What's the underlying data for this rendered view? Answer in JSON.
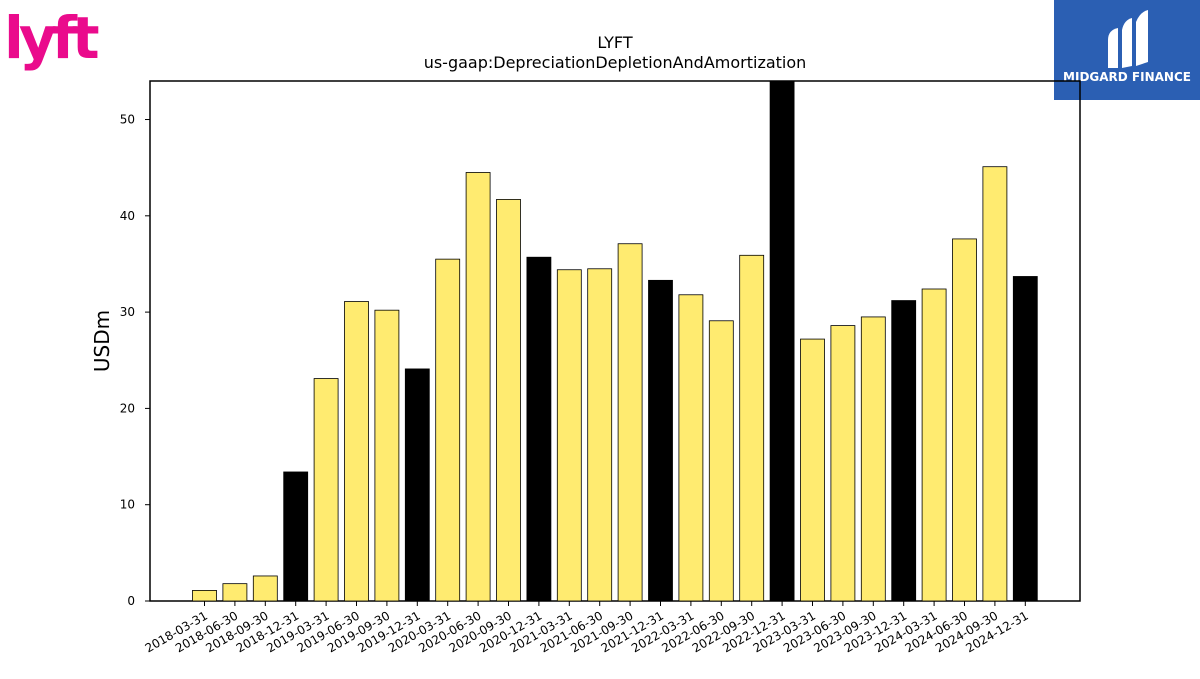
{
  "brand": {
    "left_logo": "lyft",
    "left_logo_color": "#ea0b8c",
    "right_logo_text": "MIDGARD FINANCE",
    "right_logo_bg": "#2b5fb3"
  },
  "chart_data": {
    "type": "bar",
    "title": "LYFT",
    "subtitle": "us-gaap:DepreciationDepletionAndAmortization",
    "xlabel": "",
    "ylabel": "USDm",
    "ylim": [
      0,
      54
    ],
    "yticks": [
      0,
      10,
      20,
      30,
      40,
      50
    ],
    "grid": false,
    "categories": [
      "2018-03-31",
      "2018-06-30",
      "2018-09-30",
      "2018-12-31",
      "2019-03-31",
      "2019-06-30",
      "2019-09-30",
      "2019-12-31",
      "2020-03-31",
      "2020-06-30",
      "2020-09-30",
      "2020-12-31",
      "2021-03-31",
      "2021-06-30",
      "2021-09-30",
      "2021-12-31",
      "2022-03-31",
      "2022-06-30",
      "2022-09-30",
      "2022-12-31",
      "2023-03-31",
      "2023-06-30",
      "2023-09-30",
      "2023-12-31",
      "2024-03-31",
      "2024-06-30",
      "2024-09-30",
      "2024-12-31"
    ],
    "values": [
      1.1,
      1.8,
      2.6,
      13.4,
      23.1,
      31.1,
      30.2,
      24.1,
      35.5,
      44.5,
      41.7,
      35.7,
      34.4,
      34.5,
      37.1,
      33.3,
      31.8,
      29.1,
      35.9,
      54.0,
      27.2,
      28.6,
      29.5,
      31.2,
      32.4,
      37.6,
      45.1,
      33.7
    ],
    "colors": {
      "quarter_bar": "#ffeb70",
      "year_end_bar": "#000000",
      "bar_edge": "#000000"
    }
  }
}
